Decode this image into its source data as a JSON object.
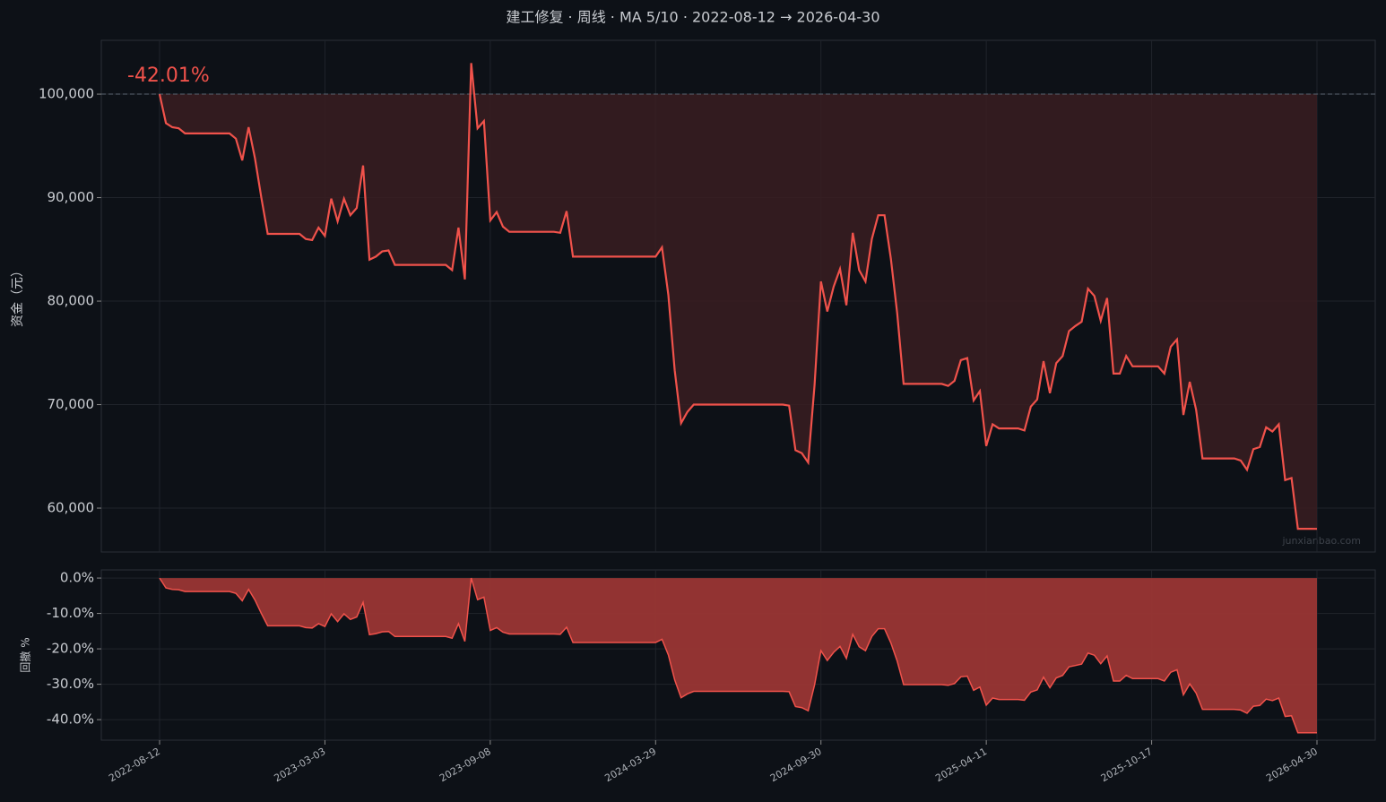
{
  "chart_data": [
    {
      "type": "line",
      "title": "建工修复 · 周线 · MA 5/10 · 2022-08-12 → 2026-04-30",
      "annotation": "-42.01%",
      "watermark": "junxianbao.com",
      "ylabel": "资金（元）",
      "reference_line": 100000,
      "color": "#f0524b",
      "fill": "#3a1d21",
      "ylim": [
        55760,
        105200
      ],
      "yticks": [
        {
          "value": 60000,
          "label": "60,000"
        },
        {
          "value": 70000,
          "label": "70,000"
        },
        {
          "value": 80000,
          "label": "80,000"
        },
        {
          "value": 90000,
          "label": "90,000"
        },
        {
          "value": 100000,
          "label": "100,000"
        }
      ],
      "grid": true,
      "values": [
        100000,
        97200,
        96800,
        96700,
        96200,
        96200,
        96200,
        96200,
        96200,
        96200,
        96200,
        96200,
        95700,
        93600,
        96800,
        93800,
        90000,
        86500,
        86500,
        86500,
        86500,
        86500,
        86500,
        86000,
        85900,
        87100,
        86300,
        89900,
        87700,
        89900,
        88300,
        89000,
        93100,
        84000,
        84300,
        84800,
        84900,
        83500,
        83500,
        83500,
        83500,
        83500,
        83500,
        83500,
        83500,
        83500,
        83000,
        87100,
        82100,
        103000,
        96700,
        97400,
        87800,
        88600,
        87200,
        86700,
        86700,
        86700,
        86700,
        86700,
        86700,
        86700,
        86700,
        86600,
        88700,
        84300,
        84300,
        84300,
        84300,
        84300,
        84300,
        84300,
        84300,
        84300,
        84300,
        84300,
        84300,
        84300,
        84300,
        85200,
        80600,
        73300,
        68200,
        69300,
        70000,
        70000,
        70000,
        70000,
        70000,
        70000,
        70000,
        70000,
        70000,
        70000,
        70000,
        70000,
        70000,
        70000,
        70000,
        69900,
        65600,
        65300,
        64400,
        71900,
        81900,
        79000,
        81400,
        83100,
        79600,
        86600,
        83000,
        81900,
        86000,
        88300,
        88300,
        84100,
        78800,
        72000,
        72000,
        72000,
        72000,
        72000,
        72000,
        72000,
        71800,
        72300,
        74300,
        74500,
        70400,
        71300,
        66000,
        68100,
        67700,
        67700,
        67700,
        67700,
        67500,
        69800,
        70500,
        74200,
        71100,
        74000,
        74700,
        77100,
        77600,
        78000,
        81200,
        80500,
        78100,
        80300,
        73000,
        73000,
        74700,
        73700,
        73700,
        73700,
        73700,
        73700,
        73000,
        75600,
        76300,
        69000,
        72200,
        69500,
        64800,
        64800,
        64800,
        64800,
        64800,
        64800,
        64600,
        63700,
        65700,
        65900,
        67800,
        67400,
        68100,
        62700,
        62900,
        58000,
        58000,
        58000,
        57990
      ]
    },
    {
      "type": "area",
      "ylabel": "回撤 %",
      "color": "#f0524b",
      "fill": "#9a3634",
      "ylim": [
        -45.8,
        2.3
      ],
      "yticks": [
        {
          "value": -40,
          "label": "-40.0%"
        },
        {
          "value": -30,
          "label": "-30.0%"
        },
        {
          "value": -20,
          "label": "-20.0%"
        },
        {
          "value": -10,
          "label": "-10.0%"
        },
        {
          "value": 0,
          "label": "0.0%"
        }
      ],
      "grid": true,
      "categories": [
        "2022-08-12",
        null,
        null,
        null,
        null,
        null,
        null,
        null,
        null,
        null,
        null,
        null,
        null,
        null,
        null,
        null,
        null,
        null,
        null,
        null,
        null,
        null,
        null,
        null,
        null,
        null,
        "2023-03-03",
        null,
        null,
        null,
        null,
        null,
        null,
        null,
        null,
        null,
        null,
        null,
        null,
        null,
        null,
        null,
        null,
        null,
        null,
        null,
        null,
        null,
        null,
        null,
        null,
        null,
        "2023-09-08",
        null,
        null,
        null,
        null,
        null,
        null,
        null,
        null,
        null,
        null,
        null,
        null,
        null,
        null,
        null,
        null,
        null,
        null,
        null,
        null,
        null,
        null,
        null,
        null,
        null,
        "2024-03-29",
        null,
        null,
        null,
        null,
        null,
        null,
        null,
        null,
        null,
        null,
        null,
        null,
        null,
        null,
        null,
        null,
        null,
        null,
        null,
        null,
        null,
        null,
        null,
        null,
        null,
        "2024-09-30",
        null,
        null,
        null,
        null,
        null,
        null,
        null,
        null,
        null,
        null,
        null,
        null,
        null,
        null,
        null,
        null,
        null,
        null,
        null,
        null,
        null,
        null,
        null,
        null,
        null,
        "2025-04-11",
        null,
        null,
        null,
        null,
        null,
        null,
        null,
        null,
        null,
        null,
        null,
        null,
        null,
        null,
        null,
        null,
        null,
        null,
        null,
        null,
        null,
        null,
        null,
        null,
        null,
        "2025-10-17",
        null,
        null,
        null,
        null,
        null,
        null,
        null,
        null,
        null,
        null,
        null,
        null,
        null,
        null,
        null,
        null,
        null,
        null,
        null,
        null,
        null,
        null,
        null,
        null,
        null,
        "2026-04-30"
      ],
      "values": [
        0,
        -2.8,
        -3.2,
        -3.3,
        -3.8,
        -3.8,
        -3.8,
        -3.8,
        -3.8,
        -3.8,
        -3.8,
        -3.8,
        -4.3,
        -6.4,
        -3.2,
        -6.2,
        -10,
        -13.5,
        -13.5,
        -13.5,
        -13.5,
        -13.5,
        -13.5,
        -14,
        -14.1,
        -12.9,
        -13.7,
        -10.1,
        -12.3,
        -10.1,
        -11.7,
        -11,
        -6.9,
        -16,
        -15.7,
        -15.2,
        -15.1,
        -16.5,
        -16.5,
        -16.5,
        -16.5,
        -16.5,
        -16.5,
        -16.5,
        -16.5,
        -16.5,
        -17,
        -12.9,
        -17.9,
        0,
        -6.1,
        -5.4,
        -14.8,
        -14,
        -15.3,
        -15.8,
        -15.8,
        -15.8,
        -15.8,
        -15.8,
        -15.8,
        -15.8,
        -15.8,
        -15.9,
        -13.9,
        -18.2,
        -18.2,
        -18.2,
        -18.2,
        -18.2,
        -18.2,
        -18.2,
        -18.2,
        -18.2,
        -18.2,
        -18.2,
        -18.2,
        -18.2,
        -18.2,
        -17.3,
        -21.7,
        -28.8,
        -33.8,
        -32.7,
        -32,
        -32,
        -32,
        -32,
        -32,
        -32,
        -32,
        -32,
        -32,
        -32,
        -32,
        -32,
        -32,
        -32,
        -32,
        -32.1,
        -36.3,
        -36.6,
        -37.5,
        -30.2,
        -20.5,
        -23.3,
        -21,
        -19.3,
        -22.7,
        -15.9,
        -19.4,
        -20.5,
        -16.5,
        -14.3,
        -14.3,
        -18.3,
        -23.5,
        -30.1,
        -30.1,
        -30.1,
        -30.1,
        -30.1,
        -30.1,
        -30.1,
        -30.3,
        -29.8,
        -27.9,
        -27.7,
        -31.7,
        -30.8,
        -35.9,
        -33.9,
        -34.3,
        -34.3,
        -34.3,
        -34.3,
        -34.5,
        -32.2,
        -31.6,
        -28,
        -31,
        -28.2,
        -27.5,
        -25.1,
        -24.7,
        -24.3,
        -21.2,
        -21.8,
        -24.2,
        -22,
        -29.1,
        -29.1,
        -27.5,
        -28.4,
        -28.4,
        -28.4,
        -28.4,
        -28.4,
        -29.1,
        -26.6,
        -25.9,
        -33,
        -29.9,
        -32.5,
        -37.1,
        -37.1,
        -37.1,
        -37.1,
        -37.1,
        -37.1,
        -37.3,
        -38.2,
        -36.2,
        -36,
        -34.2,
        -34.6,
        -33.9,
        -39.1,
        -38.9,
        -43.7,
        -43.7,
        -43.7,
        -43.7
      ]
    }
  ]
}
